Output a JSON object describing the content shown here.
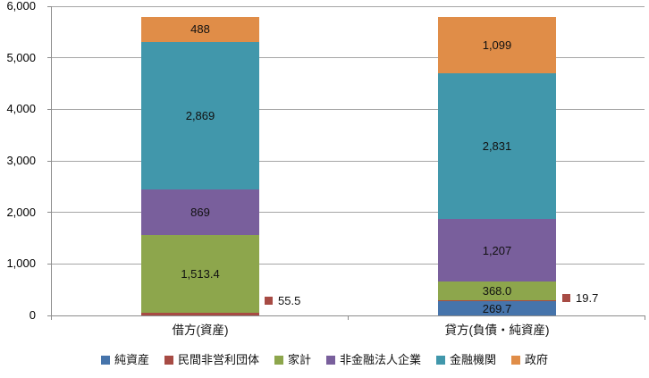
{
  "chart_data": {
    "type": "bar",
    "stacked": true,
    "title": "",
    "categories": [
      "借方(資産)",
      "貸方(負債・純資産)"
    ],
    "series": [
      {
        "name": "純資産",
        "color": "#4674ab",
        "values": [
          0,
          269.7
        ],
        "data_labels": [
          "",
          "269.7"
        ]
      },
      {
        "name": "民間非営利団体",
        "color": "#a74b44",
        "values": [
          55.5,
          19.7
        ],
        "data_labels": [
          "55.5",
          "19.7"
        ],
        "labels_outside_with_key": true
      },
      {
        "name": "家計",
        "color": "#8da64c",
        "values": [
          1513.4,
          368.0
        ],
        "data_labels": [
          "1,513.4",
          "368.0"
        ]
      },
      {
        "name": "非金融法人企業",
        "color": "#795f9c",
        "values": [
          869,
          1207
        ],
        "data_labels": [
          "869",
          "1,207"
        ]
      },
      {
        "name": "金融機関",
        "color": "#4197ab",
        "values": [
          2869,
          2831
        ],
        "data_labels": [
          "2,869",
          "2,831"
        ]
      },
      {
        "name": "政府",
        "color": "#e08d48",
        "values": [
          488,
          1099
        ],
        "data_labels": [
          "488",
          "1,099"
        ]
      }
    ],
    "y_axis": {
      "min": 0,
      "max": 6000,
      "step": 1000,
      "tick_labels": [
        "0",
        "1,000",
        "2,000",
        "3,000",
        "4,000",
        "5,000",
        "6,000"
      ]
    },
    "x_axis": {
      "labels": [
        "借方(資産)",
        "貸方(負債・純資産)"
      ]
    },
    "legend": {
      "position": "bottom",
      "entries": [
        "純資産",
        "民間非営利団体",
        "家計",
        "非金融法人企業",
        "金融機関",
        "政府"
      ]
    },
    "grid": true
  },
  "colors": {
    "grid": "#a6a6a6",
    "axis": "#8c8c8c",
    "text": "#000000",
    "background": "#ffffff"
  }
}
